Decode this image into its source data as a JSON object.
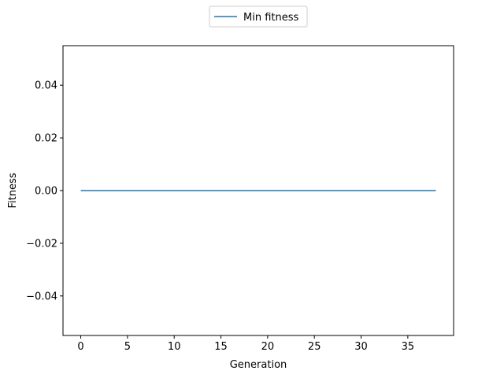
{
  "chart_data": {
    "type": "line",
    "title": "",
    "xlabel": "Generation",
    "ylabel": "Fitness",
    "xlim": [
      -1.9,
      39.9
    ],
    "ylim": [
      -0.055,
      0.055
    ],
    "grid": false,
    "legend_position": "top-center",
    "x_ticks": [
      0,
      5,
      10,
      15,
      20,
      25,
      30,
      35
    ],
    "x_tick_labels": [
      "0",
      "5",
      "10",
      "15",
      "20",
      "25",
      "30",
      "35"
    ],
    "y_ticks": [
      -0.04,
      -0.02,
      0.0,
      0.02,
      0.04
    ],
    "y_tick_labels": [
      "−0.04",
      "−0.02",
      "0.00",
      "0.02",
      "0.04"
    ],
    "series": [
      {
        "name": "Min fitness",
        "color": "#1f77b4",
        "x": [
          0,
          1,
          2,
          3,
          4,
          5,
          6,
          7,
          8,
          9,
          10,
          11,
          12,
          13,
          14,
          15,
          16,
          17,
          18,
          19,
          20,
          21,
          22,
          23,
          24,
          25,
          26,
          27,
          28,
          29,
          30,
          31,
          32,
          33,
          34,
          35,
          36,
          37,
          38
        ],
        "values": [
          0,
          0,
          0,
          0,
          0,
          0,
          0,
          0,
          0,
          0,
          0,
          0,
          0,
          0,
          0,
          0,
          0,
          0,
          0,
          0,
          0,
          0,
          0,
          0,
          0,
          0,
          0,
          0,
          0,
          0,
          0,
          0,
          0,
          0,
          0,
          0,
          0,
          0,
          0
        ]
      }
    ]
  }
}
